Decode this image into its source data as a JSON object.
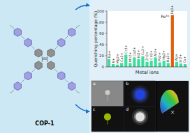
{
  "chart_data": {
    "type": "bar",
    "xlabel": "Metal ions",
    "ylabel": "Quenching percentage (%)",
    "categories": [
      "Na+",
      "K+",
      "Mg2+",
      "Ca2+",
      "Cr3+",
      "Mn2+",
      "Co2+",
      "Ni2+",
      "Cu2+",
      "Zn2+",
      "Cd2+",
      "Al3+",
      "Pb2+",
      "Hg2+",
      "Ba2+",
      "Fe3+",
      "Ag+",
      "Sr2+",
      "Cs+"
    ],
    "values": [
      14,
      5,
      4,
      7,
      22,
      7,
      17,
      14,
      19,
      9,
      11,
      17,
      8,
      11,
      7,
      93,
      9,
      6,
      5
    ],
    "colors": [
      "#40dda0",
      "#40dda0",
      "#40dda0",
      "#40dda0",
      "#40dda0",
      "#40dda0",
      "#40dda0",
      "#40dda0",
      "#40dda0",
      "#40dda0",
      "#40dda0",
      "#40dda0",
      "#40dda0",
      "#40dda0",
      "#40dda0",
      "#e06010",
      "#40dda0",
      "#40dda0",
      "#40dda0"
    ],
    "ylim": [
      0,
      100
    ],
    "yticks": [
      0,
      20,
      40,
      60,
      80,
      100
    ],
    "annotations": [
      {
        "text": "Fe³⁺",
        "x": "Fe3+"
      },
      {
        "text": "COP-1"
      },
      {
        "text": "a"
      },
      {
        "text": "b"
      },
      {
        "text": "c"
      },
      {
        "text": "d"
      }
    ]
  }
}
